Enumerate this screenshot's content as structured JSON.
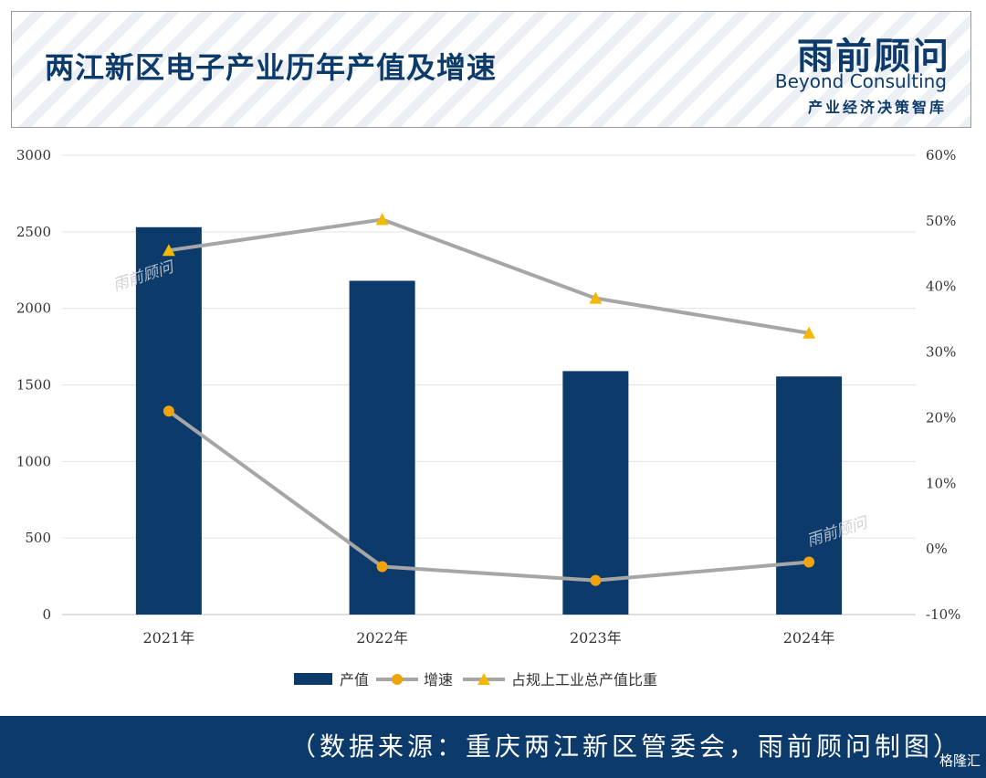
{
  "header": {
    "title": "两江新区电子产业历年产值及增速",
    "logo_cn": "雨前顾问",
    "logo_en": "Beyond Consulting",
    "logo_sub": "产业经济决策智库"
  },
  "watermark": "雨前顾问",
  "footer": {
    "source": "（数据来源：重庆两江新区管委会，雨前顾问制图）",
    "badge": "格隆汇"
  },
  "colors": {
    "bar": "#0b3a6b",
    "growth_line": "#a6a6a6",
    "growth_marker": "#f0a30a",
    "share_marker": "#f5b800",
    "header_text": "#0b3a6b",
    "footer_bg": "#0b3a6b"
  },
  "chart_data": {
    "type": "bar+line",
    "categories": [
      "2021年",
      "2022年",
      "2023年",
      "2024年"
    ],
    "series": [
      {
        "name": "产值",
        "type": "bar",
        "axis": "left",
        "values": [
          2530,
          2180,
          1590,
          1555
        ]
      },
      {
        "name": "增速",
        "type": "line",
        "axis": "right",
        "marker": "circle",
        "values": [
          21.0,
          -2.7,
          -4.8,
          -2.0
        ]
      },
      {
        "name": "占规上工业总产值比重",
        "type": "line",
        "axis": "right",
        "marker": "triangle",
        "values": [
          45.5,
          50.2,
          38.2,
          32.9
        ]
      }
    ],
    "y_left": {
      "min": 0,
      "max": 3000,
      "ticks": [
        "0",
        "500",
        "1000",
        "1500",
        "2000",
        "2500",
        "3000"
      ]
    },
    "y_right": {
      "min": -10,
      "max": 60,
      "ticks": [
        "-10%",
        "0%",
        "10%",
        "20%",
        "30%",
        "40%",
        "50%",
        "60%"
      ]
    },
    "grid": true,
    "legend_position": "bottom"
  }
}
